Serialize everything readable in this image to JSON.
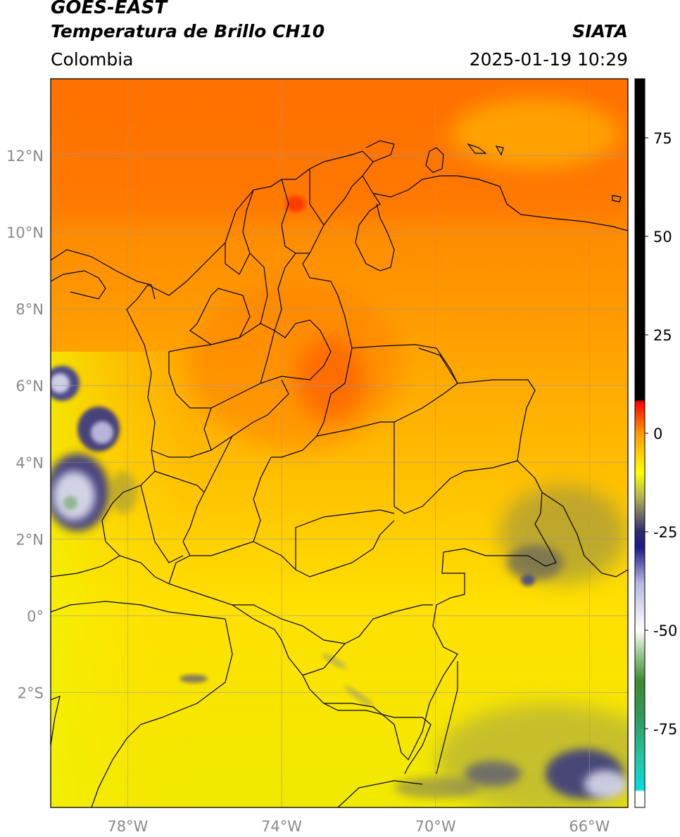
{
  "header": {
    "satellite": "GOES-EAST",
    "product": "Temperatura de Brillo CH10",
    "organization": "SIATA",
    "region": "Colombia",
    "timestamp": "2025-01-19 10:29"
  },
  "map": {
    "lon_range": [
      -80,
      -65
    ],
    "lat_range": [
      -5,
      14
    ],
    "lat_ticks": [
      {
        "value": 12,
        "label": "12°N"
      },
      {
        "value": 10,
        "label": "10°N"
      },
      {
        "value": 8,
        "label": "8°N"
      },
      {
        "value": 6,
        "label": "6°N"
      },
      {
        "value": 4,
        "label": "4°N"
      },
      {
        "value": 2,
        "label": "2°N"
      },
      {
        "value": 0,
        "label": "0°"
      },
      {
        "value": -2,
        "label": "2°S"
      }
    ],
    "lon_ticks": [
      {
        "value": -78,
        "label": "78°W"
      },
      {
        "value": -74,
        "label": "74°W"
      },
      {
        "value": -70,
        "label": "70°W"
      },
      {
        "value": -66,
        "label": "66°W"
      }
    ],
    "gridlines": true
  },
  "colorbar": {
    "range": [
      -95,
      90
    ],
    "ticks": [
      {
        "value": 75,
        "label": "75"
      },
      {
        "value": 50,
        "label": "50"
      },
      {
        "value": 25,
        "label": "25"
      },
      {
        "value": 0,
        "label": "0"
      },
      {
        "value": -25,
        "label": "-25"
      },
      {
        "value": -50,
        "label": "-50"
      },
      {
        "value": -75,
        "label": "-75"
      }
    ],
    "stops": [
      {
        "value": -95,
        "color": "#ffffff"
      },
      {
        "value": -91,
        "color": "#ffffff"
      },
      {
        "value": -90.5,
        "color": "#00e0e0"
      },
      {
        "value": -83,
        "color": "#20c8a8"
      },
      {
        "value": -72,
        "color": "#2e9a5a"
      },
      {
        "value": -63,
        "color": "#3f8a2f"
      },
      {
        "value": -56,
        "color": "#9ac890"
      },
      {
        "value": -50,
        "color": "#ffffff"
      },
      {
        "value": -38,
        "color": "#b6b6e0"
      },
      {
        "value": -29,
        "color": "#1a1a8c"
      },
      {
        "value": -25,
        "color": "#2a2a6e"
      },
      {
        "value": -21,
        "color": "#6a6a6a"
      },
      {
        "value": -16,
        "color": "#b5b54a"
      },
      {
        "value": -10,
        "color": "#ffff00"
      },
      {
        "value": 0,
        "color": "#ff9a00"
      },
      {
        "value": 8,
        "color": "#ff0000"
      },
      {
        "value": 8.5,
        "color": "#000000"
      },
      {
        "value": 90,
        "color": "#000000"
      }
    ]
  },
  "colors": {
    "sea_north": "#ff7a00",
    "land_warm": "#ff9a10",
    "cold_south": "#ffea00",
    "cloud_blue": "#2a2a9a",
    "cloud_white": "#e8e8f4"
  }
}
